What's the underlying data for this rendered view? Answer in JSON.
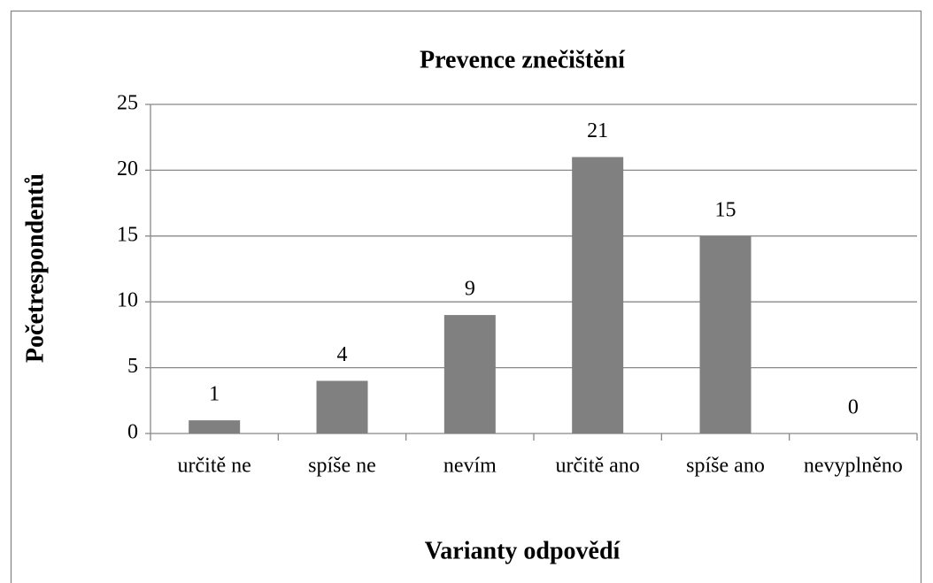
{
  "chart_data": {
    "type": "bar",
    "title": "Prevence znečištění",
    "x_label": "Varianty odpovědí",
    "y_label": "Početrespondentů",
    "categories": [
      "určitě ne",
      "spíše ne",
      "nevím",
      "určitě ano",
      "spíše ano",
      "nevyplněno"
    ],
    "values": [
      1,
      4,
      9,
      21,
      15,
      0
    ],
    "color": "#808080",
    "ylim": [
      0,
      25
    ],
    "yticks": [
      0,
      5,
      10,
      15,
      20,
      25
    ],
    "grid": true
  }
}
